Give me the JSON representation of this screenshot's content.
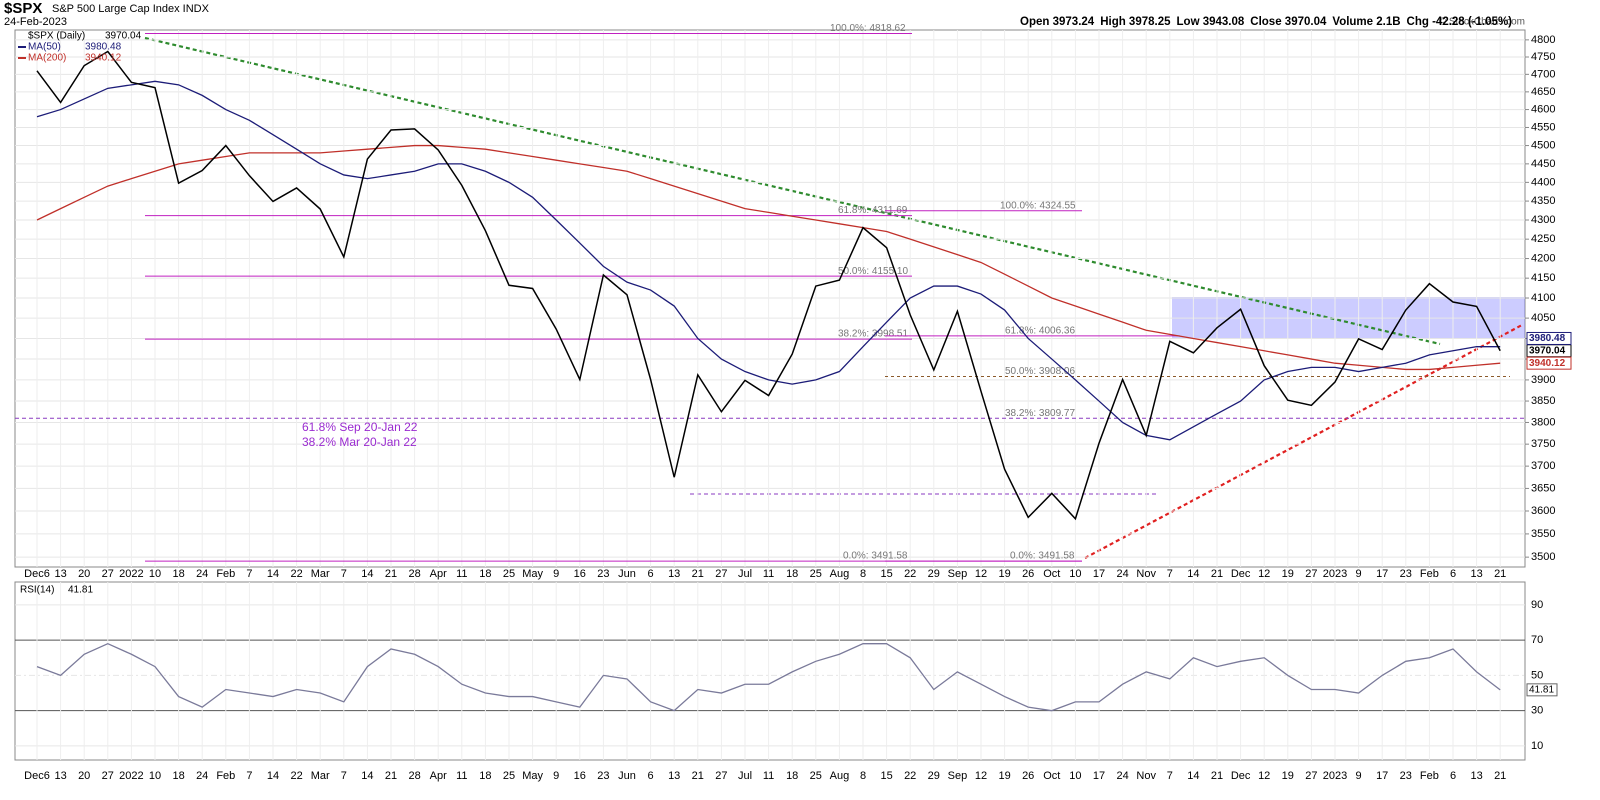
{
  "chart_data": {
    "type": "line",
    "title": "$SPX",
    "subtitle": "S&P 500 Large Cap Index INDX",
    "date": "24-Feb-2023",
    "quote": [
      "Open 3973.24",
      "High 3978.25",
      "Low 3943.08",
      "Close 3970.04",
      "Volume 2.1B",
      "Chg -42.28 (-1.05%)"
    ],
    "credit": "© StockCharts.com",
    "log_scale": true,
    "grid": true,
    "categories": [
      "Dec6",
      "13",
      "20",
      "27",
      "2022",
      "10",
      "18",
      "24",
      "Feb",
      "7",
      "14",
      "22",
      "Mar",
      "7",
      "14",
      "21",
      "28",
      "Apr",
      "11",
      "18",
      "25",
      "May",
      "9",
      "16",
      "23",
      "Jun",
      "6",
      "13",
      "21",
      "27",
      "Jul",
      "11",
      "18",
      "25",
      "Aug",
      "8",
      "15",
      "22",
      "29",
      "Sep",
      "12",
      "19",
      "26",
      "Oct",
      "10",
      "17",
      "24",
      "Nov",
      "7",
      "14",
      "21",
      "Dec",
      "12",
      "19",
      "27",
      "2023",
      "9",
      "17",
      "23",
      "Feb",
      "6",
      "13",
      "21"
    ],
    "series": [
      {
        "name": "$SPX (Daily)",
        "last": 3970.04,
        "color": "#000000",
        "values": [
          4710,
          4620,
          4725,
          4766,
          4677,
          4662,
          4398,
          4432,
          4500,
          4418,
          4349,
          4385,
          4329,
          4204,
          4463,
          4543,
          4546,
          4488,
          4392,
          4272,
          4132,
          4124,
          4023,
          3901,
          4158,
          4108,
          3901,
          3675,
          3912,
          3825,
          3899,
          3863,
          3962,
          4130,
          4145,
          4280,
          4228,
          4058,
          3924,
          4067,
          3873,
          3693,
          3586,
          3639,
          3583,
          3752,
          3901,
          3770,
          3993,
          3965,
          4026,
          4072,
          3934,
          3852,
          3840,
          3895,
          3999,
          3973,
          4070,
          4136,
          4090,
          4079,
          3970
        ]
      },
      {
        "name": "MA(50)",
        "last": 3980.48,
        "color": "#1c1c78",
        "values": [
          4580,
          4600,
          4630,
          4660,
          4670,
          4680,
          4670,
          4640,
          4600,
          4570,
          4530,
          4490,
          4450,
          4420,
          4410,
          4420,
          4430,
          4450,
          4450,
          4430,
          4400,
          4360,
          4300,
          4240,
          4180,
          4140,
          4120,
          4080,
          4000,
          3950,
          3920,
          3900,
          3890,
          3900,
          3920,
          3980,
          4040,
          4100,
          4130,
          4130,
          4110,
          4070,
          4000,
          3950,
          3900,
          3850,
          3800,
          3770,
          3760,
          3790,
          3820,
          3850,
          3900,
          3920,
          3930,
          3930,
          3920,
          3930,
          3940,
          3960,
          3970,
          3980,
          3980
        ]
      },
      {
        "name": "MA(200)",
        "last": 3940.12,
        "color": "#c0302a",
        "values": [
          4300,
          4330,
          4360,
          4390,
          4410,
          4430,
          4450,
          4460,
          4470,
          4480,
          4480,
          4480,
          4480,
          4485,
          4490,
          4495,
          4500,
          4500,
          4495,
          4490,
          4480,
          4470,
          4460,
          4450,
          4440,
          4430,
          4410,
          4390,
          4370,
          4350,
          4330,
          4320,
          4310,
          4300,
          4290,
          4280,
          4270,
          4250,
          4230,
          4210,
          4190,
          4160,
          4130,
          4100,
          4080,
          4060,
          4040,
          4020,
          4010,
          4000,
          3990,
          3980,
          3970,
          3960,
          3950,
          3940,
          3935,
          3930,
          3925,
          3925,
          3930,
          3935,
          3940
        ]
      }
    ],
    "ylim": [
      3479,
      4829
    ],
    "yticks": [
      3500,
      3550,
      3600,
      3650,
      3700,
      3750,
      3800,
      3850,
      3900,
      3950,
      4000,
      4050,
      4100,
      4150,
      4200,
      4250,
      4300,
      4350,
      4400,
      4450,
      4500,
      4550,
      4600,
      4650,
      4700,
      4750,
      4800
    ],
    "fib_levels": [
      {
        "label": "100.0%: 4818.62",
        "value": 4818.62
      },
      {
        "label": "61.8%: 4311.69",
        "value": 4311.69
      },
      {
        "label": "50.0%: 4155.10",
        "value": 4155.1
      },
      {
        "label": "38.2%: 3998.51",
        "value": 3998.51
      },
      {
        "label": "0.0%: 3491.58",
        "value": 3491.58
      },
      {
        "label": "100.0%: 4324.55",
        "value": 4324.55
      },
      {
        "label": "61.8%: 4006.36",
        "value": 4006.36
      },
      {
        "label": "50.0%: 3908.06",
        "value": 3908.06
      },
      {
        "label": "38.2%: 3809.77",
        "value": 3809.77
      },
      {
        "label": "0.0%: 3491.58",
        "value": 3491.58
      }
    ],
    "annotations": [
      "61.8% Sep 20-Jan 22",
      "38.2% Mar 20-Jan 22"
    ],
    "rsi": {
      "name": "RSI(14)",
      "last": 41.81,
      "color": "#7a7a9a",
      "values": [
        55,
        50,
        62,
        68,
        62,
        55,
        38,
        32,
        42,
        40,
        38,
        42,
        40,
        35,
        55,
        65,
        62,
        55,
        45,
        40,
        38,
        38,
        35,
        32,
        50,
        48,
        35,
        30,
        42,
        40,
        45,
        45,
        52,
        58,
        62,
        68,
        68,
        60,
        42,
        52,
        45,
        38,
        32,
        30,
        35,
        35,
        45,
        52,
        48,
        60,
        55,
        58,
        60,
        50,
        42,
        42,
        40,
        50,
        58,
        60,
        65,
        52,
        41.81
      ],
      "ylim": [
        2,
        103
      ],
      "yticks": [
        10,
        30,
        50,
        70,
        90
      ]
    }
  }
}
